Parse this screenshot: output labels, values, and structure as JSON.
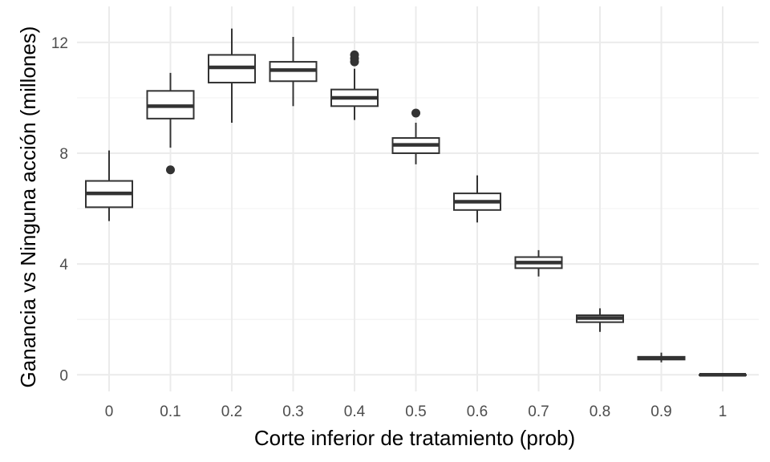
{
  "chart_data": {
    "type": "boxplot",
    "title": "",
    "xlabel": "Corte inferior de tratamiento (prob)",
    "ylabel": "Ganancia vs Ninguna acción (millones)",
    "categories": [
      "0",
      "0.1",
      "0.2",
      "0.3",
      "0.4",
      "0.5",
      "0.6",
      "0.7",
      "0.8",
      "0.9",
      "1"
    ],
    "y_ticks": [
      0,
      4,
      8,
      12
    ],
    "ylim": [
      -0.6,
      13.3
    ],
    "grid": true,
    "legend": "none",
    "boxes": [
      {
        "category": "0",
        "min": 5.55,
        "q1": 6.05,
        "median": 6.55,
        "q3": 7.0,
        "max": 8.1,
        "outliers": []
      },
      {
        "category": "0.1",
        "min": 8.2,
        "q1": 9.25,
        "median": 9.7,
        "q3": 10.25,
        "max": 10.9,
        "outliers": [
          7.4
        ]
      },
      {
        "category": "0.2",
        "min": 9.1,
        "q1": 10.55,
        "median": 11.1,
        "q3": 11.55,
        "max": 12.5,
        "outliers": []
      },
      {
        "category": "0.3",
        "min": 9.7,
        "q1": 10.6,
        "median": 11.0,
        "q3": 11.3,
        "max": 12.2,
        "outliers": []
      },
      {
        "category": "0.4",
        "min": 9.2,
        "q1": 9.7,
        "median": 10.0,
        "q3": 10.3,
        "max": 11.05,
        "outliers": [
          11.3,
          11.42,
          11.55
        ]
      },
      {
        "category": "0.5",
        "min": 7.6,
        "q1": 8.0,
        "median": 8.3,
        "q3": 8.55,
        "max": 9.1,
        "outliers": [
          9.45
        ]
      },
      {
        "category": "0.6",
        "min": 5.5,
        "q1": 5.95,
        "median": 6.25,
        "q3": 6.55,
        "max": 7.2,
        "outliers": []
      },
      {
        "category": "0.7",
        "min": 3.55,
        "q1": 3.85,
        "median": 4.05,
        "q3": 4.25,
        "max": 4.5,
        "outliers": []
      },
      {
        "category": "0.8",
        "min": 1.55,
        "q1": 1.9,
        "median": 2.05,
        "q3": 2.15,
        "max": 2.4,
        "outliers": []
      },
      {
        "category": "0.9",
        "min": 0.45,
        "q1": 0.55,
        "median": 0.6,
        "q3": 0.65,
        "max": 0.8,
        "outliers": []
      },
      {
        "category": "1",
        "min": 0.0,
        "q1": 0.0,
        "median": 0.0,
        "q3": 0.0,
        "max": 0.0,
        "outliers": []
      }
    ],
    "colors": {
      "background": "#ffffff",
      "grid_major": "#ebebeb",
      "grid_minor": "#f3f3f3",
      "box_line": "#333333",
      "box_fill": "#ffffff"
    }
  }
}
